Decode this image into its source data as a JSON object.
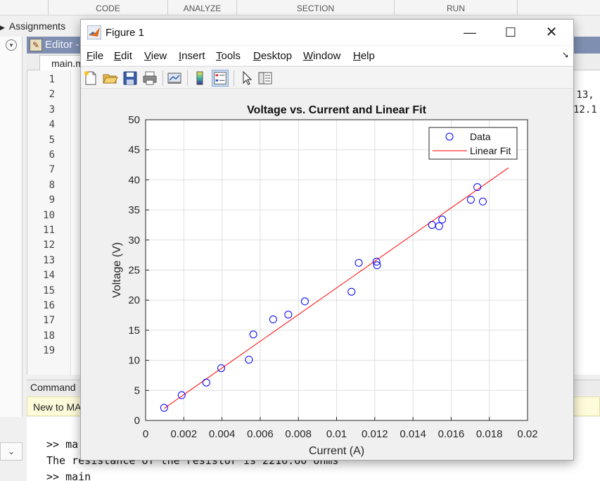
{
  "desktop": {
    "ribbon_sections": [
      "CODE",
      "ANALYZE",
      "SECTION",
      "RUN"
    ],
    "assignments_label": "Assignments",
    "editor_title": "Editor -",
    "editor_tab": "main.m",
    "line_numbers": [
      "1",
      "2",
      "3",
      "4",
      "5",
      "6",
      "7",
      "8",
      "9",
      "10",
      "11",
      "12",
      "13",
      "14",
      "15",
      "16",
      "17",
      "18",
      "19"
    ],
    "code_fragments": [
      ".13,",
      "12.1"
    ],
    "command_window_title": "Command",
    "new_to_label": "New to MA",
    "command_lines": [
      ">> ma",
      "The resistance of the resistor is 2216.60 ohms",
      ">> main"
    ]
  },
  "figure": {
    "window_title": "Figure 1",
    "menu": [
      "File",
      "Edit",
      "View",
      "Insert",
      "Tools",
      "Desktop",
      "Window",
      "Help"
    ],
    "toolbar_icons": [
      "new-figure-icon",
      "open-file-icon",
      "save-icon",
      "print-icon",
      "link-plot-icon",
      "colorbar-icon",
      "legend-icon",
      "pointer-icon",
      "property-inspector-icon"
    ],
    "colors": {
      "data": "#0000ff",
      "fit": "#ff0000",
      "window_bg": "#f0f0f0"
    }
  },
  "chart_data": {
    "type": "scatter",
    "title": "Voltage vs. Current and Linear Fit",
    "xlabel": "Current (A)",
    "ylabel": "Voltage (V)",
    "xlim": [
      0,
      0.02
    ],
    "ylim": [
      0,
      50
    ],
    "xticks": [
      "0",
      "0.002",
      "0.004",
      "0.006",
      "0.008",
      "0.01",
      "0.012",
      "0.014",
      "0.016",
      "0.018",
      "0.02"
    ],
    "yticks": [
      "0",
      "5",
      "10",
      "15",
      "20",
      "25",
      "30",
      "35",
      "40",
      "45",
      "50"
    ],
    "grid": true,
    "legend": "top-right",
    "series": [
      {
        "name": "Data",
        "marker": "circle",
        "x": [
          0.00097,
          0.00189,
          0.00318,
          0.00396,
          0.00541,
          0.00564,
          0.00668,
          0.00747,
          0.00834,
          0.01078,
          0.01116,
          0.01209,
          0.01212,
          0.015,
          0.01537,
          0.01553,
          0.01703,
          0.01737,
          0.01766
        ],
        "y": [
          2.1,
          4.2,
          6.3,
          8.7,
          10.1,
          14.3,
          16.8,
          17.6,
          19.8,
          21.4,
          26.2,
          26.4,
          25.8,
          32.5,
          32.3,
          33.4,
          36.7,
          38.8,
          36.4
        ]
      },
      {
        "name": "Linear Fit",
        "line": "solid",
        "x": [
          0.00097,
          0.019
        ],
        "y": [
          2.0,
          42.0
        ]
      }
    ]
  }
}
